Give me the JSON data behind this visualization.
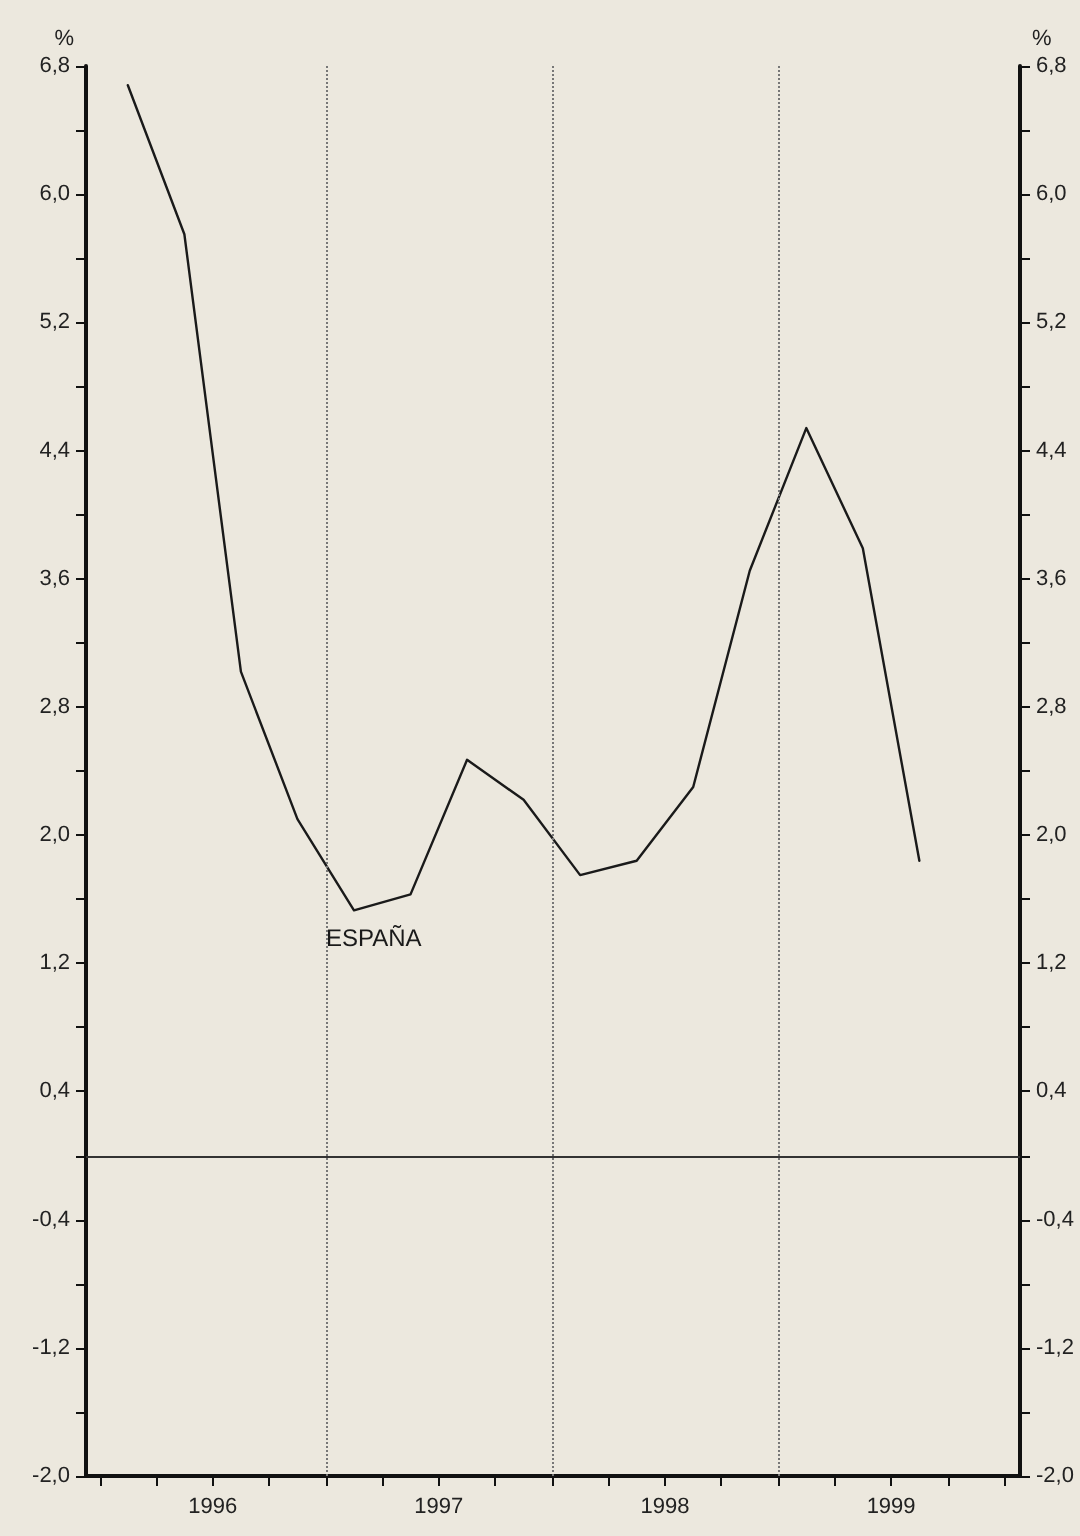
{
  "chart_data": {
    "type": "line",
    "x": [
      1996.125,
      1996.375,
      1996.625,
      1996.875,
      1997.125,
      1997.375,
      1997.625,
      1997.875,
      1998.125,
      1998.375,
      1998.625,
      1998.875,
      1999.125,
      1999.375,
      1999.625
    ],
    "series": [
      {
        "name": "ESPAÑA",
        "color": "#1a1a1a",
        "values": [
          6.68,
          5.75,
          3.02,
          2.1,
          1.53,
          1.63,
          2.47,
          2.22,
          1.75,
          1.84,
          2.3,
          3.65,
          4.54,
          3.79,
          1.84
        ]
      }
    ],
    "xlim": [
      1995.94,
      2000.07
    ],
    "xticks": [
      {
        "value": 1996,
        "label": null
      },
      {
        "value": 1996.25,
        "label": null
      },
      {
        "value": 1996.5,
        "label": "1996"
      },
      {
        "value": 1996.75,
        "label": null
      },
      {
        "value": 1997,
        "label": null
      },
      {
        "value": 1997.25,
        "label": null
      },
      {
        "value": 1997.5,
        "label": "1997"
      },
      {
        "value": 1997.75,
        "label": null
      },
      {
        "value": 1998,
        "label": null
      },
      {
        "value": 1998.25,
        "label": null
      },
      {
        "value": 1998.5,
        "label": "1998"
      },
      {
        "value": 1998.75,
        "label": null
      },
      {
        "value": 1999,
        "label": null
      },
      {
        "value": 1999.25,
        "label": null
      },
      {
        "value": 1999.5,
        "label": "1999"
      },
      {
        "value": 1999.75,
        "label": null
      },
      {
        "value": 2000,
        "label": null
      }
    ],
    "ylim": [
      -2.0,
      6.8
    ],
    "yticks": [
      {
        "value": -2.0,
        "label": "-2,0"
      },
      {
        "value": -1.6,
        "label": null
      },
      {
        "value": -1.2,
        "label": "-1,2"
      },
      {
        "value": -0.8,
        "label": null
      },
      {
        "value": -0.4,
        "label": "-0,4"
      },
      {
        "value": 0,
        "label": null
      },
      {
        "value": 0.4,
        "label": "0,4"
      },
      {
        "value": 0.8,
        "label": null
      },
      {
        "value": 1.2,
        "label": "1,2"
      },
      {
        "value": 1.6,
        "label": null
      },
      {
        "value": 2.0,
        "label": "2,0"
      },
      {
        "value": 2.4,
        "label": null
      },
      {
        "value": 2.8,
        "label": "2,8"
      },
      {
        "value": 3.2,
        "label": null
      },
      {
        "value": 3.6,
        "label": "3,6"
      },
      {
        "value": 4.0,
        "label": null
      },
      {
        "value": 4.4,
        "label": "4,4"
      },
      {
        "value": 4.8,
        "label": null
      },
      {
        "value": 5.2,
        "label": "5,2"
      },
      {
        "value": 5.6,
        "label": null
      },
      {
        "value": 6.0,
        "label": "6,0"
      },
      {
        "value": 6.4,
        "label": null
      },
      {
        "value": 6.8,
        "label": "6,8"
      }
    ],
    "y2lim": [
      -2.0,
      6.8
    ],
    "y2ticks": [
      {
        "value": -2.0,
        "label": "-2,0"
      },
      {
        "value": -1.6,
        "label": null
      },
      {
        "value": -1.2,
        "label": "-1,2"
      },
      {
        "value": -0.8,
        "label": null
      },
      {
        "value": -0.4,
        "label": "-0,4"
      },
      {
        "value": 0,
        "label": null
      },
      {
        "value": 0.4,
        "label": "0,4"
      },
      {
        "value": 0.8,
        "label": null
      },
      {
        "value": 1.2,
        "label": "1,2"
      },
      {
        "value": 1.6,
        "label": null
      },
      {
        "value": 2.0,
        "label": "2,0"
      },
      {
        "value": 2.4,
        "label": null
      },
      {
        "value": 2.8,
        "label": "2,8"
      },
      {
        "value": 3.2,
        "label": null
      },
      {
        "value": 3.6,
        "label": "3,6"
      },
      {
        "value": 4.0,
        "label": null
      },
      {
        "value": 4.4,
        "label": "4,4"
      },
      {
        "value": 4.8,
        "label": null
      },
      {
        "value": 5.2,
        "label": "5,2"
      },
      {
        "value": 5.6,
        "label": null
      },
      {
        "value": 6.0,
        "label": "6,0"
      },
      {
        "value": 6.4,
        "label": null
      },
      {
        "value": 6.8,
        "label": "6,8"
      }
    ],
    "ylabel": "%",
    "y2label": "%",
    "ref_lines": [
      {
        "axis": "x",
        "value": 1997,
        "color": "#777777",
        "line_style": "dotted"
      },
      {
        "axis": "x",
        "value": 1998,
        "color": "#777777",
        "line_style": "dotted"
      },
      {
        "axis": "x",
        "value": 1999,
        "color": "#777777",
        "line_style": "dotted"
      },
      {
        "axis": "y",
        "value": 0,
        "color": "#333333",
        "line_style": "solid"
      }
    ],
    "grid": false,
    "marker": "none",
    "line_style": "solid"
  }
}
